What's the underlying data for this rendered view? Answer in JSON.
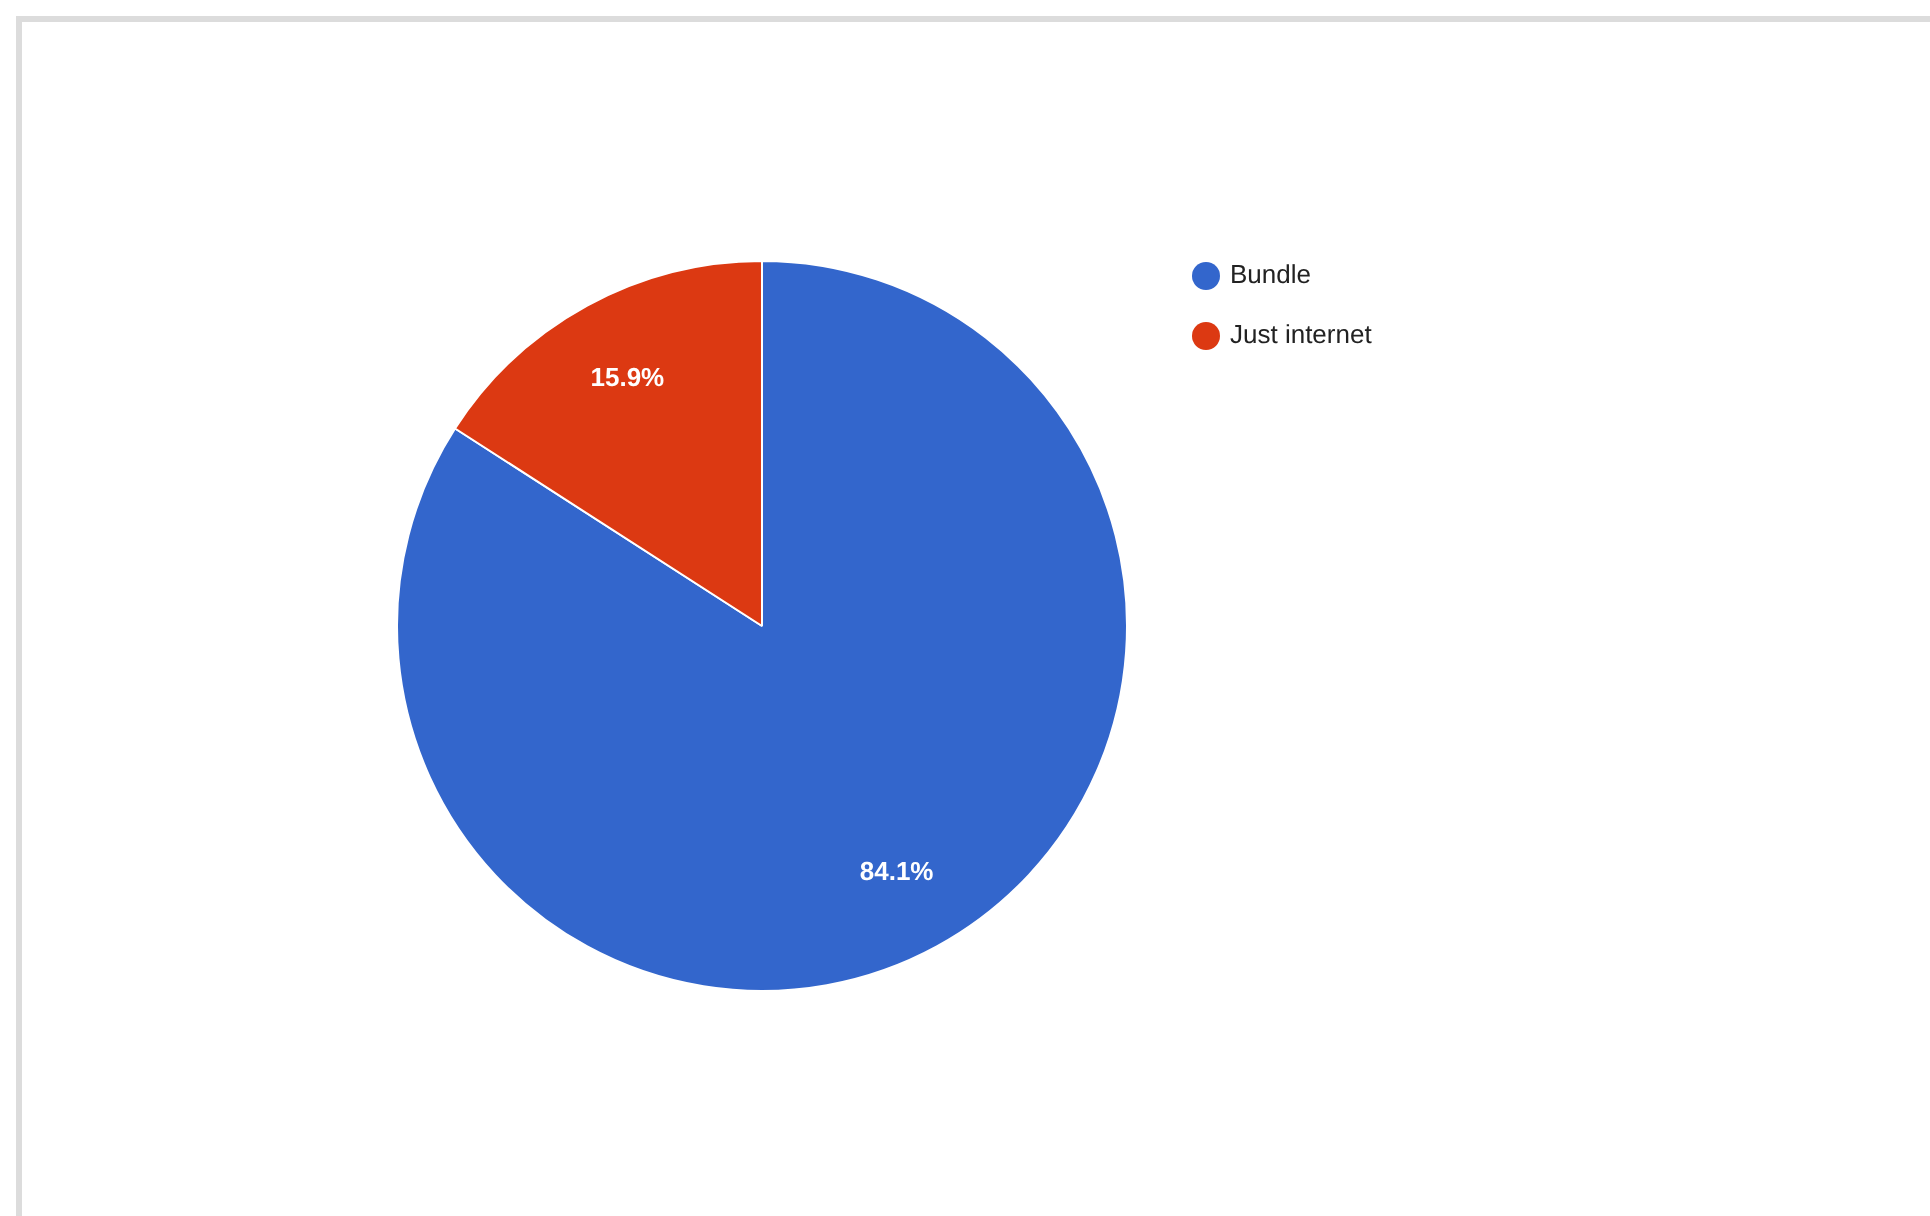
{
  "chart_data": {
    "type": "pie",
    "categories": [
      "Bundle",
      "Just internet"
    ],
    "values": [
      84.1,
      15.9
    ],
    "colors": [
      "#3366cc",
      "#dc3912"
    ],
    "value_labels": [
      "84.1%",
      "15.9%"
    ],
    "legend": "right"
  }
}
